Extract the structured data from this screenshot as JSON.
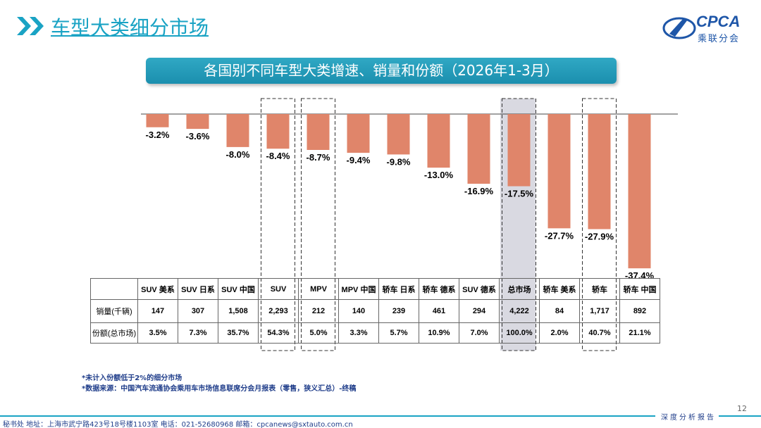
{
  "header": {
    "title": "车型大类细分市场",
    "logo_text": "CPCA",
    "logo_sub": "乘联分会"
  },
  "chart_title": "各国别不同车型大类增速、销量和份额（2026年1-3月）",
  "chart_data": {
    "type": "bar",
    "categories": [
      "SUV 美系",
      "SUV 日系",
      "SUV 中国",
      "SUV",
      "MPV",
      "MPV 中国",
      "轿车 日系",
      "轿车 德系",
      "SUV 德系",
      "总市场",
      "轿车 美系",
      "轿车",
      "轿车 中国"
    ],
    "values": [
      -3.2,
      -3.6,
      -8.0,
      -8.4,
      -8.7,
      -9.4,
      -9.8,
      -13.0,
      -16.9,
      -17.5,
      -27.7,
      -27.9,
      -37.4
    ],
    "labels": [
      "-3.2%",
      "-3.6%",
      "-8.0%",
      "-8.4%",
      "-8.7%",
      "-9.4%",
      "-9.8%",
      "-13.0%",
      "-16.9%",
      "-17.5%",
      "-27.7%",
      "-27.9%",
      "-37.4%"
    ],
    "highlighted": [
      "SUV",
      "MPV",
      "总市场",
      "轿车"
    ],
    "bar_color": "#e0856a",
    "title": "各国别不同车型大类增速、销量和份额（2026年1-3月）"
  },
  "table": {
    "row_labels": [
      "销量(千辆)",
      "份额(总市场)"
    ],
    "sales": [
      "147",
      "307",
      "1,508",
      "2,293",
      "212",
      "140",
      "239",
      "461",
      "294",
      "4,222",
      "84",
      "1,717",
      "892"
    ],
    "share": [
      "3.5%",
      "7.3%",
      "35.7%",
      "54.3%",
      "5.0%",
      "3.3%",
      "5.7%",
      "10.9%",
      "7.0%",
      "100.0%",
      "2.0%",
      "40.7%",
      "21.1%"
    ]
  },
  "notes": [
    "*未计入份额低于2%的细分市场",
    "*数据来源：中国汽车流通协会乘用车市场信息联席分会月报表（零售，狭义汇总）-终稿"
  ],
  "footer": {
    "address": "秘书处   地址：上海市武宁路423号18号楼1103室  电话：021-52680968    邮箱：cpcanews@sxtauto.com.cn",
    "tag": "深度分析报告",
    "page": "12"
  }
}
